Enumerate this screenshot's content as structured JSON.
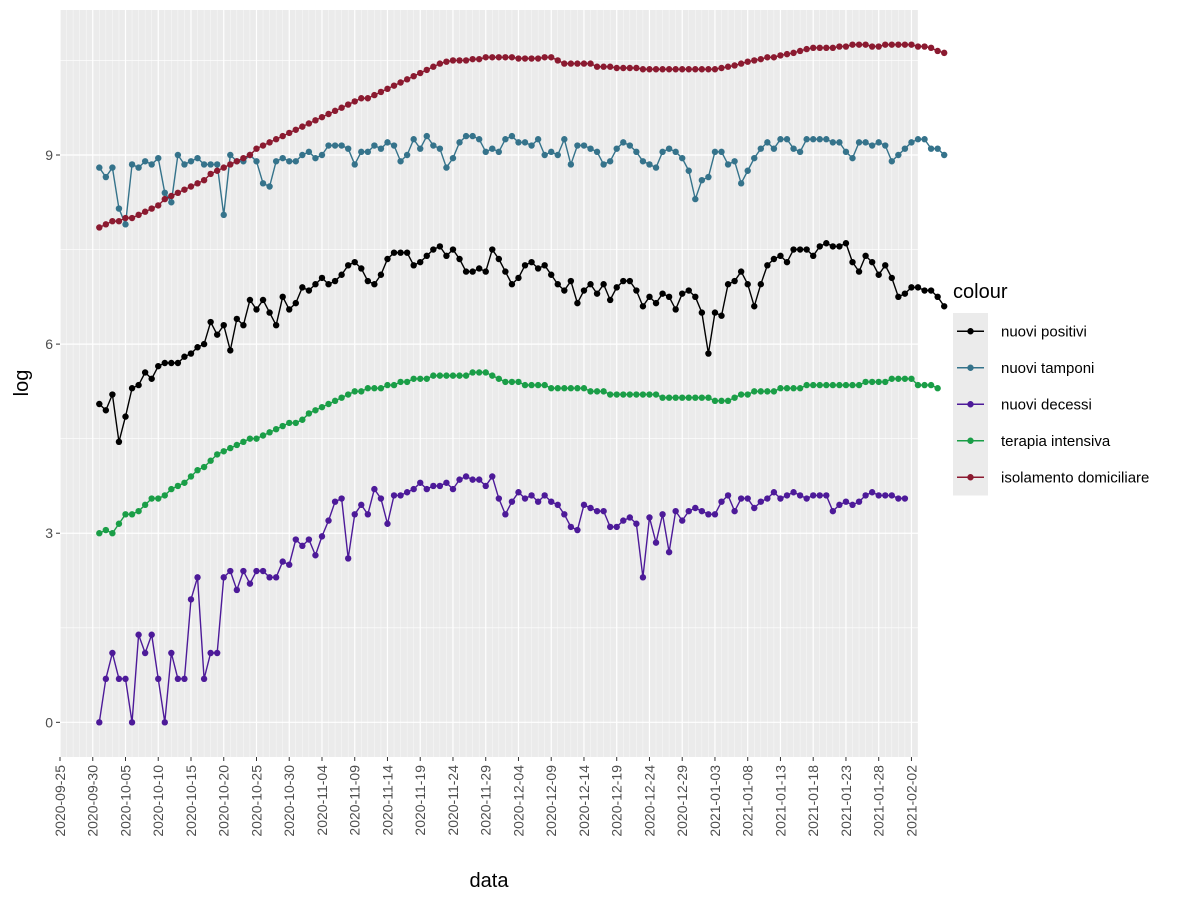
{
  "chart_data": {
    "type": "line",
    "xlabel": "data",
    "ylabel": "log",
    "legend_title": "colour",
    "legend_position": "right",
    "grid": true,
    "x_range": [
      "2020-09-25",
      "2021-02-03"
    ],
    "ylim": [
      -0.55,
      11.3
    ],
    "y_ticks": [
      0,
      3,
      6,
      9
    ],
    "y_tick_labels": [
      "0",
      "3",
      "6",
      "9"
    ],
    "x_ticks": [
      "2020-09-25",
      "2020-09-30",
      "2020-10-05",
      "2020-10-10",
      "2020-10-15",
      "2020-10-20",
      "2020-10-25",
      "2020-10-30",
      "2020-11-04",
      "2020-11-09",
      "2020-11-14",
      "2020-11-19",
      "2020-11-24",
      "2020-11-29",
      "2020-12-04",
      "2020-12-09",
      "2020-12-14",
      "2020-12-19",
      "2020-12-24",
      "2020-12-29",
      "2021-01-03",
      "2021-01-08",
      "2021-01-13",
      "2021-01-18",
      "2021-01-23",
      "2021-01-28",
      "2021-02-02"
    ],
    "x_start": "2020-10-01",
    "series": [
      {
        "name": "nuovi positivi",
        "color": "#000000",
        "values": [
          5.05,
          4.95,
          5.2,
          4.45,
          4.85,
          5.3,
          5.35,
          5.55,
          5.45,
          5.65,
          5.7,
          5.7,
          5.7,
          5.8,
          5.85,
          5.95,
          6.0,
          6.35,
          6.15,
          6.3,
          5.9,
          6.4,
          6.3,
          6.7,
          6.55,
          6.7,
          6.5,
          6.3,
          6.75,
          6.55,
          6.65,
          6.9,
          6.85,
          6.95,
          7.05,
          6.95,
          7.0,
          7.1,
          7.25,
          7.3,
          7.2,
          7.0,
          6.95,
          7.1,
          7.35,
          7.45,
          7.45,
          7.45,
          7.25,
          7.3,
          7.4,
          7.5,
          7.55,
          7.4,
          7.5,
          7.35,
          7.15,
          7.15,
          7.2,
          7.15,
          7.5,
          7.35,
          7.15,
          6.95,
          7.05,
          7.25,
          7.3,
          7.2,
          7.25,
          7.1,
          6.95,
          6.85,
          7.0,
          6.65,
          6.85,
          6.95,
          6.8,
          6.95,
          6.7,
          6.9,
          7.0,
          7.0,
          6.85,
          6.6,
          6.75,
          6.65,
          6.8,
          6.75,
          6.55,
          6.8,
          6.85,
          6.75,
          6.5,
          5.85,
          6.5,
          6.45,
          6.95,
          7.0,
          7.15,
          6.95,
          6.6,
          6.95,
          7.25,
          7.35,
          7.4,
          7.3,
          7.5,
          7.5,
          7.5,
          7.4,
          7.55,
          7.6,
          7.55,
          7.55,
          7.6,
          7.3,
          7.15,
          7.4,
          7.3,
          7.1,
          7.25,
          7.05,
          6.75,
          6.8,
          6.9,
          6.9,
          6.85,
          6.85,
          6.75,
          6.6
        ]
      },
      {
        "name": "nuovi tamponi",
        "color": "#35738b",
        "values": [
          8.8,
          8.65,
          8.8,
          8.15,
          7.9,
          8.85,
          8.8,
          8.9,
          8.85,
          8.95,
          8.4,
          8.25,
          9.0,
          8.85,
          8.9,
          8.95,
          8.85,
          8.85,
          8.85,
          8.05,
          9.0,
          8.9,
          8.9,
          9.0,
          8.9,
          8.55,
          8.5,
          8.9,
          8.95,
          8.9,
          8.9,
          9.0,
          9.05,
          8.95,
          9.0,
          9.15,
          9.15,
          9.15,
          9.1,
          8.85,
          9.05,
          9.05,
          9.15,
          9.1,
          9.2,
          9.15,
          8.9,
          9.0,
          9.25,
          9.1,
          9.3,
          9.15,
          9.1,
          8.8,
          8.95,
          9.2,
          9.3,
          9.3,
          9.25,
          9.05,
          9.1,
          9.05,
          9.25,
          9.3,
          9.2,
          9.2,
          9.15,
          9.25,
          9.0,
          9.05,
          9.0,
          9.25,
          8.85,
          9.15,
          9.15,
          9.1,
          9.05,
          8.85,
          8.9,
          9.1,
          9.2,
          9.15,
          9.05,
          8.9,
          8.85,
          8.8,
          9.05,
          9.1,
          9.05,
          8.95,
          8.75,
          8.3,
          8.6,
          8.65,
          9.05,
          9.05,
          8.85,
          8.9,
          8.55,
          8.75,
          8.95,
          9.1,
          9.2,
          9.1,
          9.25,
          9.25,
          9.1,
          9.05,
          9.25,
          9.25,
          9.25,
          9.25,
          9.2,
          9.2,
          9.05,
          8.95,
          9.2,
          9.2,
          9.15,
          9.2,
          9.15,
          8.9,
          9.0,
          9.1,
          9.2,
          9.25,
          9.25,
          9.1,
          9.1,
          9.0
        ]
      },
      {
        "name": "nuovi decessi",
        "color": "#4d1a99",
        "values": [
          0.0,
          0.69,
          1.1,
          0.69,
          0.69,
          0.0,
          1.39,
          1.1,
          1.39,
          0.69,
          0.0,
          1.1,
          0.69,
          0.69,
          1.95,
          2.3,
          0.69,
          1.1,
          1.1,
          2.3,
          2.4,
          2.1,
          2.4,
          2.2,
          2.4,
          2.4,
          2.3,
          2.3,
          2.55,
          2.5,
          2.9,
          2.8,
          2.9,
          2.65,
          2.95,
          3.2,
          3.5,
          3.55,
          2.6,
          3.3,
          3.45,
          3.3,
          3.7,
          3.55,
          3.15,
          3.6,
          3.6,
          3.65,
          3.7,
          3.8,
          3.7,
          3.75,
          3.75,
          3.8,
          3.7,
          3.85,
          3.9,
          3.85,
          3.85,
          3.75,
          3.9,
          3.55,
          3.3,
          3.5,
          3.65,
          3.55,
          3.6,
          3.5,
          3.6,
          3.5,
          3.45,
          3.3,
          3.1,
          3.05,
          3.45,
          3.4,
          3.35,
          3.35,
          3.1,
          3.1,
          3.2,
          3.25,
          3.15,
          2.3,
          3.25,
          2.85,
          3.3,
          2.7,
          3.35,
          3.2,
          3.35,
          3.4,
          3.35,
          3.3,
          3.3,
          3.5,
          3.6,
          3.35,
          3.55,
          3.55,
          3.4,
          3.5,
          3.55,
          3.65,
          3.55,
          3.6,
          3.65,
          3.6,
          3.55,
          3.6,
          3.6,
          3.6,
          3.35,
          3.45,
          3.5,
          3.45,
          3.5,
          3.6,
          3.65,
          3.6,
          3.6,
          3.6,
          3.55,
          3.55
        ]
      },
      {
        "name": "terapia intensiva",
        "color": "#1a9e47",
        "values": [
          3.0,
          3.05,
          3.0,
          3.15,
          3.3,
          3.3,
          3.35,
          3.45,
          3.55,
          3.55,
          3.6,
          3.7,
          3.75,
          3.8,
          3.9,
          4.0,
          4.05,
          4.15,
          4.25,
          4.3,
          4.35,
          4.4,
          4.45,
          4.5,
          4.5,
          4.55,
          4.6,
          4.65,
          4.7,
          4.75,
          4.75,
          4.8,
          4.9,
          4.95,
          5.0,
          5.05,
          5.1,
          5.15,
          5.2,
          5.25,
          5.25,
          5.3,
          5.3,
          5.3,
          5.35,
          5.35,
          5.4,
          5.4,
          5.45,
          5.45,
          5.45,
          5.5,
          5.5,
          5.5,
          5.5,
          5.5,
          5.5,
          5.55,
          5.55,
          5.55,
          5.5,
          5.45,
          5.4,
          5.4,
          5.4,
          5.35,
          5.35,
          5.35,
          5.35,
          5.3,
          5.3,
          5.3,
          5.3,
          5.3,
          5.3,
          5.25,
          5.25,
          5.25,
          5.2,
          5.2,
          5.2,
          5.2,
          5.2,
          5.2,
          5.2,
          5.2,
          5.15,
          5.15,
          5.15,
          5.15,
          5.15,
          5.15,
          5.15,
          5.15,
          5.1,
          5.1,
          5.1,
          5.15,
          5.2,
          5.2,
          5.25,
          5.25,
          5.25,
          5.25,
          5.3,
          5.3,
          5.3,
          5.3,
          5.35,
          5.35,
          5.35,
          5.35,
          5.35,
          5.35,
          5.35,
          5.35,
          5.35,
          5.4,
          5.4,
          5.4,
          5.4,
          5.45,
          5.45,
          5.45,
          5.45,
          5.35,
          5.35,
          5.35,
          5.3
        ]
      },
      {
        "name": "isolamento domiciliare",
        "color": "#8b1a30",
        "values": [
          7.85,
          7.9,
          7.95,
          7.95,
          8.0,
          8.0,
          8.05,
          8.1,
          8.15,
          8.2,
          8.3,
          8.35,
          8.4,
          8.45,
          8.5,
          8.55,
          8.6,
          8.7,
          8.75,
          8.8,
          8.85,
          8.9,
          8.95,
          9.0,
          9.1,
          9.15,
          9.2,
          9.25,
          9.3,
          9.35,
          9.4,
          9.45,
          9.5,
          9.55,
          9.6,
          9.65,
          9.7,
          9.75,
          9.8,
          9.85,
          9.9,
          9.9,
          9.95,
          10.0,
          10.05,
          10.1,
          10.15,
          10.2,
          10.25,
          10.3,
          10.35,
          10.4,
          10.45,
          10.48,
          10.5,
          10.5,
          10.5,
          10.52,
          10.52,
          10.55,
          10.55,
          10.55,
          10.55,
          10.55,
          10.53,
          10.53,
          10.53,
          10.53,
          10.55,
          10.55,
          10.5,
          10.45,
          10.45,
          10.45,
          10.45,
          10.45,
          10.4,
          10.4,
          10.4,
          10.38,
          10.38,
          10.38,
          10.38,
          10.36,
          10.36,
          10.36,
          10.36,
          10.36,
          10.36,
          10.36,
          10.36,
          10.36,
          10.36,
          10.36,
          10.36,
          10.38,
          10.4,
          10.42,
          10.45,
          10.48,
          10.5,
          10.52,
          10.55,
          10.55,
          10.58,
          10.6,
          10.62,
          10.65,
          10.68,
          10.7,
          10.7,
          10.7,
          10.7,
          10.72,
          10.72,
          10.75,
          10.75,
          10.75,
          10.72,
          10.72,
          10.75,
          10.75,
          10.75,
          10.75,
          10.75,
          10.72,
          10.72,
          10.7,
          10.65,
          10.62
        ]
      }
    ]
  }
}
